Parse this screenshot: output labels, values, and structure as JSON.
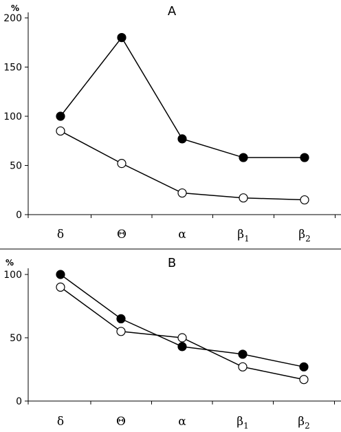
{
  "chart_data": [
    {
      "type": "line",
      "title": "A",
      "ylabel": "%",
      "xlabel": "",
      "categories": [
        "δ",
        "Θ",
        "α",
        "β1",
        "β2"
      ],
      "category_labels": [
        {
          "main": "δ",
          "sub": ""
        },
        {
          "main": "Θ",
          "sub": ""
        },
        {
          "main": "α",
          "sub": ""
        },
        {
          "main": "β",
          "sub": "1"
        },
        {
          "main": "β",
          "sub": "2"
        }
      ],
      "yticks": [
        0,
        50,
        100,
        150,
        200
      ],
      "ylim": [
        0,
        200
      ],
      "grid": false,
      "series": [
        {
          "marker": "filled-circle",
          "color": "#000000",
          "values": [
            100,
            180,
            77,
            58,
            58
          ]
        },
        {
          "marker": "open-circle",
          "color": "#ffffff",
          "values": [
            85,
            52,
            22,
            17,
            15
          ]
        }
      ]
    },
    {
      "type": "line",
      "title": "B",
      "ylabel": "%",
      "xlabel": "",
      "categories": [
        "δ",
        "Θ",
        "α",
        "β1",
        "β2"
      ],
      "category_labels": [
        {
          "main": "δ",
          "sub": ""
        },
        {
          "main": "Θ",
          "sub": ""
        },
        {
          "main": "α",
          "sub": ""
        },
        {
          "main": "β",
          "sub": "1"
        },
        {
          "main": "β",
          "sub": "2"
        }
      ],
      "yticks": [
        0,
        50,
        100
      ],
      "ylim": [
        0,
        100
      ],
      "grid": false,
      "series": [
        {
          "marker": "filled-circle",
          "color": "#000000",
          "values": [
            100,
            65,
            43,
            37,
            27
          ]
        },
        {
          "marker": "open-circle",
          "color": "#ffffff",
          "values": [
            90,
            55,
            50,
            27,
            17
          ]
        }
      ]
    }
  ]
}
